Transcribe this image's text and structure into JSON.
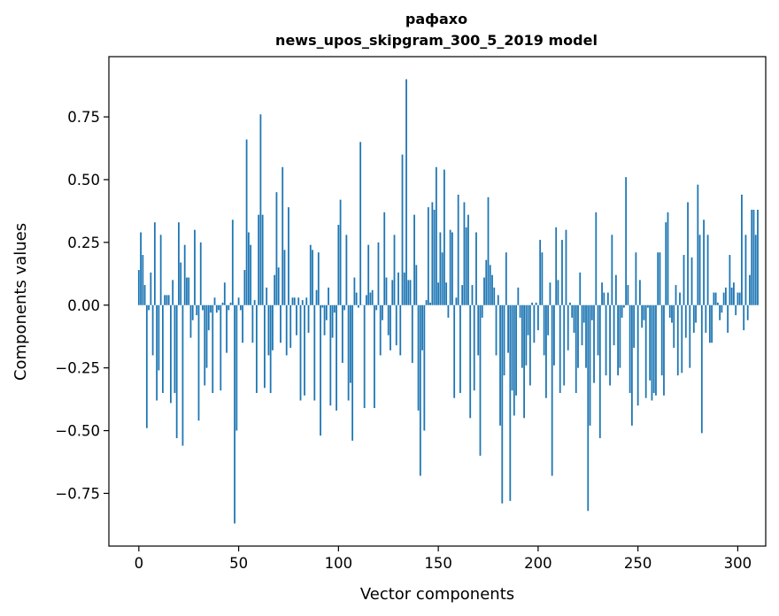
{
  "chart_data": {
    "type": "bar",
    "title_lines": [
      "рафахо",
      "news_upos_skipgram_300_5_2019 model"
    ],
    "xlabel": "Vector components",
    "ylabel": "Components values",
    "xlim": [
      -15,
      314
    ],
    "ylim": [
      -0.96,
      0.99
    ],
    "x_ticks": [
      0,
      50,
      100,
      150,
      200,
      250,
      300
    ],
    "x_tick_labels": [
      "0",
      "50",
      "100",
      "150",
      "200",
      "250",
      "300"
    ],
    "y_ticks": [
      -0.75,
      -0.5,
      -0.25,
      0.0,
      0.25,
      0.5,
      0.75
    ],
    "y_tick_labels": [
      "−0.75",
      "−0.50",
      "−0.25",
      "0.00",
      "0.25",
      "0.50",
      "0.75"
    ],
    "bar_color": "#1f77b4",
    "series": [
      {
        "name": "components",
        "x_start": 0,
        "values": [
          0.14,
          0.29,
          0.2,
          0.08,
          -0.49,
          -0.02,
          0.13,
          -0.2,
          0.33,
          -0.38,
          -0.26,
          0.28,
          -0.35,
          0.04,
          0.04,
          0.04,
          -0.39,
          0.1,
          -0.35,
          -0.53,
          0.33,
          0.17,
          -0.56,
          0.24,
          0.11,
          0.11,
          -0.13,
          -0.06,
          0.3,
          -0.04,
          -0.46,
          0.25,
          -0.02,
          -0.32,
          -0.25,
          -0.1,
          -0.03,
          -0.35,
          0.03,
          -0.03,
          -0.02,
          -0.34,
          0.01,
          0.09,
          -0.19,
          -0.02,
          0.01,
          0.34,
          -0.87,
          -0.5,
          0.03,
          -0.02,
          -0.15,
          0.14,
          0.66,
          0.29,
          0.24,
          -0.15,
          0.02,
          -0.35,
          0.36,
          0.76,
          0.36,
          -0.33,
          0.07,
          -0.2,
          -0.35,
          -0.18,
          0.12,
          0.45,
          0.15,
          -0.15,
          0.55,
          0.22,
          -0.2,
          0.39,
          -0.17,
          0.03,
          0.03,
          -0.12,
          0.03,
          -0.38,
          0.02,
          -0.36,
          0.03,
          -0.11,
          0.24,
          0.22,
          -0.38,
          0.06,
          0.21,
          -0.52,
          -0.01,
          -0.12,
          -0.06,
          0.07,
          -0.4,
          -0.13,
          -0.03,
          -0.42,
          0.32,
          0.42,
          -0.23,
          -0.02,
          0.28,
          -0.38,
          -0.31,
          -0.54,
          0.11,
          0.05,
          -0.01,
          0.65,
          0.0,
          -0.41,
          0.04,
          0.24,
          0.05,
          0.06,
          -0.41,
          -0.02,
          0.25,
          -0.2,
          -0.06,
          0.37,
          0.11,
          -0.12,
          -0.18,
          0.1,
          0.28,
          -0.16,
          0.13,
          -0.2,
          0.6,
          0.13,
          0.9,
          0.1,
          0.1,
          -0.23,
          0.36,
          0.16,
          -0.42,
          -0.68,
          -0.18,
          -0.5,
          0.02,
          0.39,
          0.01,
          0.41,
          0.38,
          0.55,
          0.09,
          0.29,
          0.21,
          0.54,
          0.09,
          -0.05,
          0.3,
          0.29,
          -0.37,
          0.03,
          0.44,
          -0.35,
          0.08,
          0.41,
          0.31,
          0.36,
          -0.45,
          0.08,
          -0.34,
          0.29,
          -0.2,
          -0.6,
          -0.05,
          0.11,
          0.18,
          0.43,
          0.16,
          0.12,
          0.07,
          -0.2,
          0.04,
          -0.48,
          -0.79,
          -0.28,
          0.21,
          -0.19,
          -0.78,
          -0.34,
          -0.44,
          -0.36,
          0.07,
          -0.05,
          -0.25,
          -0.45,
          -0.24,
          -0.12,
          -0.32,
          0.01,
          -0.15,
          0.01,
          -0.1,
          0.26,
          0.21,
          -0.2,
          -0.37,
          -0.12,
          0.09,
          -0.68,
          -0.24,
          0.31,
          0.1,
          -0.35,
          0.26,
          -0.32,
          0.3,
          -0.18,
          0.01,
          -0.05,
          -0.11,
          -0.35,
          -0.25,
          0.13,
          -0.16,
          -0.07,
          -0.25,
          -0.82,
          -0.48,
          -0.06,
          -0.31,
          0.37,
          -0.2,
          -0.53,
          0.09,
          0.05,
          -0.28,
          0.05,
          -0.32,
          0.28,
          -0.16,
          0.12,
          -0.28,
          -0.25,
          -0.05,
          -0.01,
          0.51,
          0.08,
          -0.35,
          -0.48,
          -0.17,
          0.21,
          -0.4,
          0.1,
          -0.09,
          -0.06,
          -0.37,
          -0.01,
          -0.3,
          -0.38,
          -0.35,
          -0.36,
          0.21,
          0.21,
          -0.28,
          -0.36,
          0.33,
          0.37,
          -0.05,
          -0.07,
          -0.17,
          0.08,
          -0.28,
          0.05,
          -0.27,
          0.2,
          -0.13,
          0.41,
          -0.25,
          0.19,
          -0.11,
          -0.07,
          0.48,
          0.28,
          -0.51,
          0.34,
          -0.11,
          0.28,
          -0.15,
          -0.15,
          0.05,
          0.05,
          0.01,
          -0.06,
          -0.03,
          0.05,
          0.07,
          -0.11,
          0.2,
          0.07,
          0.09,
          -0.04,
          0.05,
          0.05,
          0.44,
          -0.1,
          0.28,
          -0.06,
          0.12,
          0.38,
          0.38,
          0.28,
          0.38
        ]
      }
    ]
  }
}
